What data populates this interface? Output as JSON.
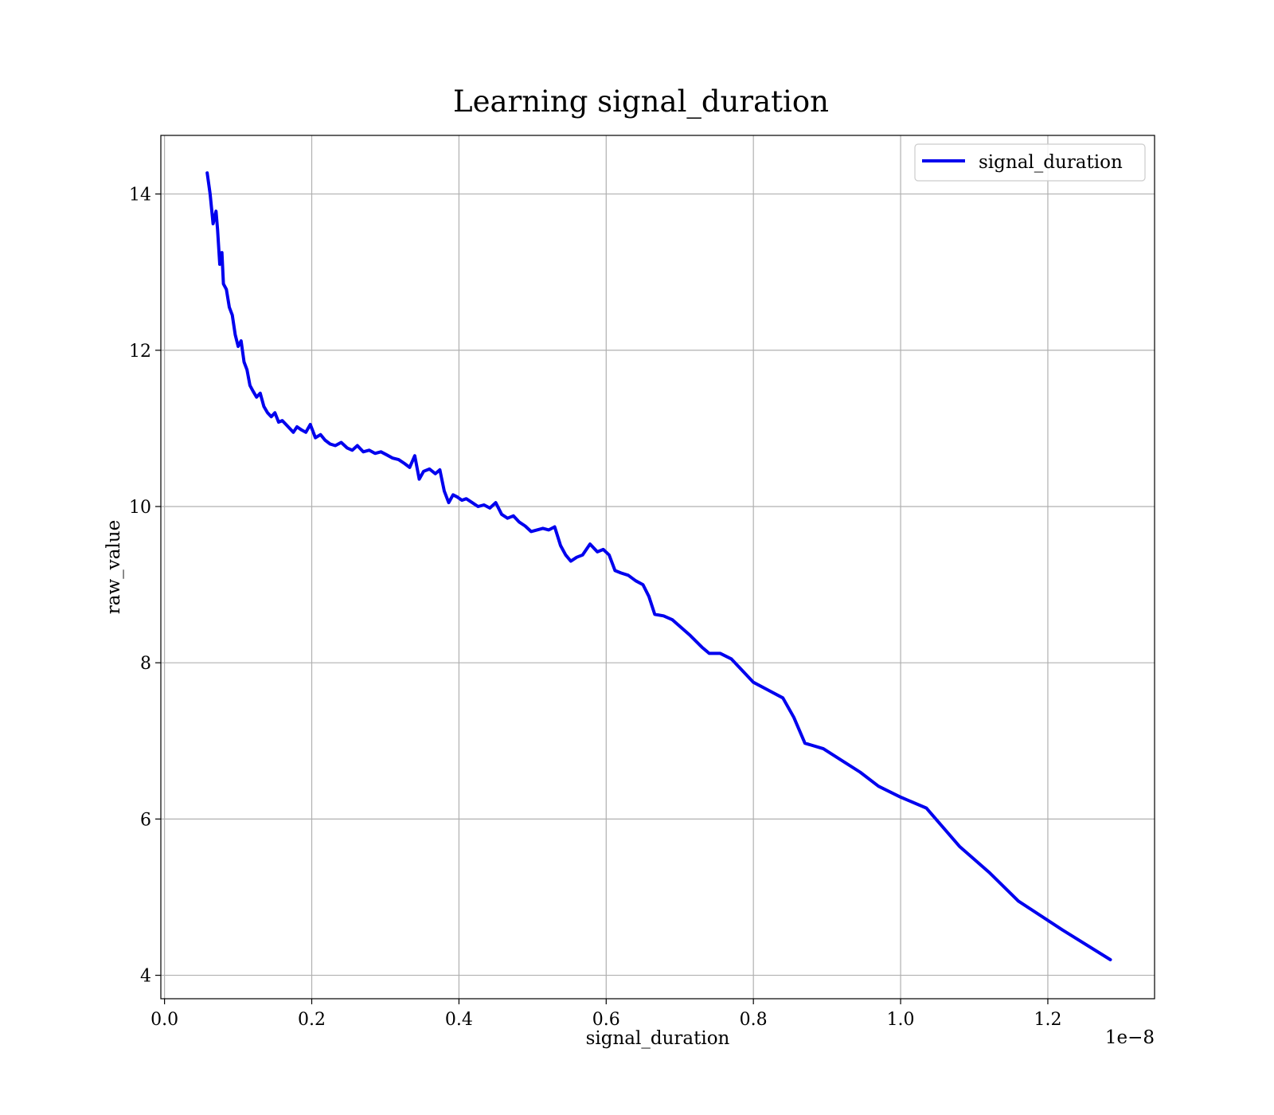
{
  "chart_data": {
    "type": "line",
    "title": "Learning signal_duration",
    "xlabel": "signal_duration",
    "ylabel": "raw_value",
    "x_offset_text": "1e−8",
    "xlim": [
      -5e-11,
      1.345e-08
    ],
    "ylim": [
      3.7,
      14.75
    ],
    "x_ticks": [
      0.0,
      2e-09,
      4e-09,
      6e-09,
      8e-09,
      1e-08,
      1.2e-08
    ],
    "x_tick_labels": [
      "0.0",
      "0.2",
      "0.4",
      "0.6",
      "0.8",
      "1.0",
      "1.2"
    ],
    "y_ticks": [
      4,
      6,
      8,
      10,
      12,
      14
    ],
    "y_tick_labels": [
      "4",
      "6",
      "8",
      "10",
      "12",
      "14"
    ],
    "grid": true,
    "legend_position": "top-right",
    "series": [
      {
        "name": "signal_duration",
        "color": "#0000ee",
        "x": [
          5.8e-10,
          6.2e-10,
          6.6e-10,
          7e-10,
          7.2e-10,
          7.5e-10,
          7.8e-10,
          8e-10,
          8.4e-10,
          8.8e-10,
          9.2e-10,
          9.6e-10,
          1e-09,
          1.04e-09,
          1.08e-09,
          1.12e-09,
          1.16e-09,
          1.2e-09,
          1.25e-09,
          1.3e-09,
          1.35e-09,
          1.4e-09,
          1.45e-09,
          1.5e-09,
          1.55e-09,
          1.6e-09,
          1.65e-09,
          1.7e-09,
          1.75e-09,
          1.8e-09,
          1.86e-09,
          1.92e-09,
          1.98e-09,
          2.05e-09,
          2.12e-09,
          2.18e-09,
          2.25e-09,
          2.32e-09,
          2.4e-09,
          2.48e-09,
          2.55e-09,
          2.62e-09,
          2.7e-09,
          2.78e-09,
          2.86e-09,
          2.94e-09,
          3.02e-09,
          3.1e-09,
          3.18e-09,
          3.26e-09,
          3.33e-09,
          3.4e-09,
          3.46e-09,
          3.52e-09,
          3.6e-09,
          3.68e-09,
          3.74e-09,
          3.8e-09,
          3.86e-09,
          3.92e-09,
          3.98e-09,
          4.04e-09,
          4.1e-09,
          4.18e-09,
          4.26e-09,
          4.34e-09,
          4.42e-09,
          4.5e-09,
          4.58e-09,
          4.66e-09,
          4.74e-09,
          4.82e-09,
          4.9e-09,
          4.98e-09,
          5.06e-09,
          5.14e-09,
          5.22e-09,
          5.3e-09,
          5.38e-09,
          5.45e-09,
          5.52e-09,
          5.6e-09,
          5.68e-09,
          5.78e-09,
          5.88e-09,
          5.96e-09,
          6.04e-09,
          6.12e-09,
          6.2e-09,
          6.3e-09,
          6.4e-09,
          6.5e-09,
          6.58e-09,
          6.66e-09,
          6.78e-09,
          6.9e-09,
          7.02e-09,
          7.14e-09,
          7.3e-09,
          7.4e-09,
          7.55e-09,
          7.7e-09,
          7.85e-09,
          8e-09,
          8.2e-09,
          8.4e-09,
          8.55e-09,
          8.7e-09,
          8.95e-09,
          9.2e-09,
          9.45e-09,
          9.7e-09,
          1e-08,
          1.035e-08,
          1.08e-08,
          1.12e-08,
          1.16e-08,
          1.22e-08,
          1.285e-08
        ],
        "y": [
          14.27,
          14.0,
          13.62,
          13.78,
          13.55,
          13.1,
          13.25,
          12.85,
          12.78,
          12.55,
          12.45,
          12.2,
          12.05,
          12.12,
          11.85,
          11.75,
          11.55,
          11.48,
          11.4,
          11.45,
          11.28,
          11.2,
          11.15,
          11.2,
          11.08,
          11.1,
          11.05,
          11.0,
          10.95,
          11.02,
          10.98,
          10.95,
          11.05,
          10.88,
          10.92,
          10.85,
          10.8,
          10.78,
          10.82,
          10.75,
          10.72,
          10.78,
          10.7,
          10.72,
          10.68,
          10.7,
          10.66,
          10.62,
          10.6,
          10.55,
          10.5,
          10.65,
          10.35,
          10.45,
          10.48,
          10.42,
          10.47,
          10.2,
          10.05,
          10.15,
          10.12,
          10.08,
          10.1,
          10.05,
          10.0,
          10.02,
          9.98,
          10.05,
          9.9,
          9.85,
          9.88,
          9.8,
          9.75,
          9.68,
          9.7,
          9.72,
          9.7,
          9.74,
          9.5,
          9.38,
          9.3,
          9.35,
          9.38,
          9.52,
          9.42,
          9.45,
          9.38,
          9.18,
          9.15,
          9.12,
          9.05,
          9.0,
          8.85,
          8.62,
          8.6,
          8.55,
          8.45,
          8.35,
          8.2,
          8.12,
          8.12,
          8.05,
          7.9,
          7.75,
          7.65,
          7.55,
          7.3,
          6.97,
          6.9,
          6.75,
          6.6,
          6.42,
          6.28,
          6.14,
          5.65,
          5.32,
          4.95,
          4.58,
          4.2
        ]
      }
    ]
  }
}
